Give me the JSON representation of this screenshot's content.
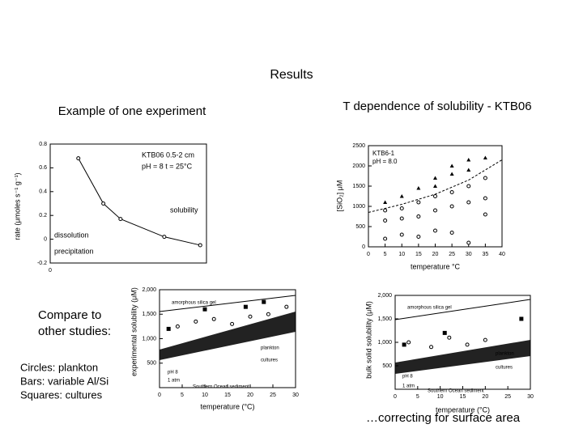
{
  "title": "Results",
  "left_caption": "Example of one experiment",
  "right_caption": "T dependence of solubility - KTB06",
  "compare_text": [
    "Compare to",
    "other studies:"
  ],
  "legend_lines": [
    "Circles: plankton",
    "Bars: variable Al/Si",
    "Squares: cultures"
  ],
  "footer": "…correcting for surface area",
  "figures": [
    {
      "y_label": "rate (μmoles s⁻¹ g⁻¹)",
      "annotations": [
        "KTB06 0.5-2 cm",
        "pH = 8  t = 25°C",
        "solubility",
        "dissolution",
        "precipitation"
      ],
      "xlim": [
        0,
        10
      ],
      "ylim": [
        -0.2,
        0.8
      ],
      "xticks": [
        0
      ],
      "yticks": [
        0.8,
        0.6,
        0.4,
        0.2,
        0,
        -0.2
      ],
      "series": [
        {
          "marker": "circle",
          "line": "solid",
          "x": [
            1.8,
            3.4,
            4.5,
            7.3,
            9.6
          ],
          "values": [
            0.68,
            0.3,
            0.17,
            0.02,
            -0.05
          ]
        }
      ]
    },
    {
      "x_label": "temperature °C",
      "y_label": "[SiO₂] μM",
      "annotations": [
        "KTB6-1",
        "pH = 8.0"
      ],
      "xlim": [
        0,
        40
      ],
      "ylim": [
        0,
        2500
      ],
      "xticks": [
        0,
        5,
        10,
        15,
        20,
        25,
        30,
        35,
        40
      ],
      "yticks": [
        0,
        500,
        1000,
        1500,
        2000,
        2500
      ],
      "series": [
        {
          "marker": "triangle",
          "x": [
            5,
            10,
            15,
            20,
            20,
            25,
            25,
            30,
            30,
            35
          ],
          "values": [
            1100,
            1250,
            1450,
            1500,
            1700,
            1800,
            2000,
            1900,
            2150,
            2200
          ]
        },
        {
          "marker": "circle",
          "x": [
            5,
            5,
            5,
            10,
            10,
            10,
            15,
            15,
            15,
            20,
            20,
            20,
            25,
            25,
            25,
            30,
            30,
            30,
            35,
            35,
            35
          ],
          "values": [
            200,
            650,
            900,
            300,
            700,
            950,
            250,
            750,
            1100,
            400,
            900,
            1250,
            350,
            1000,
            1350,
            100,
            1100,
            1500,
            800,
            1200,
            1700
          ]
        },
        {
          "marker": "none",
          "line": "dashed",
          "x": [
            0,
            10,
            20,
            30,
            40
          ],
          "values": [
            850,
            1050,
            1300,
            1650,
            2150
          ]
        }
      ]
    },
    {
      "x_label": "temperature (°C)",
      "y_label": "experimental solubility (μM)",
      "annotations": [
        "amorphous silica gel",
        "Southern Ocean sediment",
        "pH 8",
        "1 atm",
        "plankton",
        "cultures"
      ],
      "xlim": [
        0,
        30
      ],
      "ylim": [
        0,
        2000
      ],
      "xticks": [
        0,
        5,
        10,
        15,
        20,
        25,
        30
      ],
      "yticks": [
        {
          "value": 2000,
          "label": "2,000"
        },
        {
          "value": 1500,
          "label": "1,500"
        },
        {
          "value": 1000,
          "label": "1,000"
        },
        500
      ],
      "series": [
        {
          "marker": "circle",
          "x": [
            4,
            8,
            12,
            16,
            20,
            24,
            28
          ],
          "values": [
            1250,
            1350,
            1400,
            1300,
            1450,
            1500,
            1650
          ]
        },
        {
          "marker": "square",
          "x": [
            2,
            10,
            19,
            23
          ],
          "values": [
            1200,
            1600,
            1650,
            1750
          ]
        }
      ]
    },
    {
      "x_label": "temperature (°C)",
      "y_label": "bulk solid solubility (μM)",
      "annotations": [
        "amorphous silica gel",
        "Southern Ocean sediment",
        "pH 8",
        "1 atm",
        "plankton",
        "cultures"
      ],
      "xlim": [
        0,
        30
      ],
      "ylim": [
        0,
        2000
      ],
      "xticks": [
        0,
        5,
        10,
        15,
        20,
        25,
        30
      ],
      "yticks": [
        {
          "value": 2000,
          "label": "2,000"
        },
        {
          "value": 1500,
          "label": "1,500"
        },
        {
          "value": 1000,
          "label": "1,000"
        },
        500
      ],
      "series": [
        {
          "marker": "circle",
          "x": [
            3,
            8,
            12,
            16,
            20
          ],
          "values": [
            1000,
            900,
            1100,
            950,
            1050
          ]
        },
        {
          "marker": "square",
          "x": [
            2,
            11,
            28
          ],
          "values": [
            950,
            1200,
            1500
          ]
        }
      ]
    }
  ]
}
